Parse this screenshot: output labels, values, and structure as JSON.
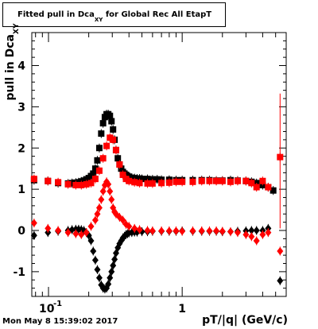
{
  "title": {
    "main": "Fitted pull in Dca",
    "subscript": "XY",
    "rest": " for Global Rec All EtapT"
  },
  "datestamp": "Mon May  8 15:39:02 2017",
  "chart_data": {
    "type": "scatter",
    "xlabel": "pT/|q| (GeV/c)",
    "ylabel_main": "pull in Dca",
    "ylabel_sub": "XY",
    "xscale": "log",
    "xlim": [
      0.075,
      6.0
    ],
    "ylim": [
      -1.6,
      4.8
    ],
    "xticks_major": [
      {
        "v": 0.1,
        "base": "10",
        "exp": "-1"
      },
      {
        "v": 1,
        "label": "1"
      }
    ],
    "yticks": [
      -1,
      0,
      1,
      2,
      3,
      4
    ],
    "series": [
      {
        "color": "#000000",
        "marker": "square",
        "x": [
          0.078,
          0.099,
          0.118,
          0.14,
          0.15,
          0.16,
          0.168,
          0.176,
          0.184,
          0.192,
          0.2,
          0.208,
          0.216,
          0.224,
          0.232,
          0.24,
          0.248,
          0.256,
          0.264,
          0.272,
          0.28,
          0.288,
          0.296,
          0.304,
          0.312,
          0.32,
          0.33,
          0.34,
          0.35,
          0.36,
          0.37,
          0.38,
          0.39,
          0.4,
          0.42,
          0.44,
          0.46,
          0.48,
          0.5,
          0.55,
          0.6,
          0.65,
          0.7,
          0.8,
          0.9,
          1.0,
          1.2,
          1.4,
          1.6,
          1.8,
          2.0,
          2.3,
          2.6,
          3.0,
          3.3,
          3.6,
          4.0,
          4.4,
          4.8
        ],
        "y": [
          1.22,
          1.2,
          1.15,
          1.14,
          1.15,
          1.16,
          1.17,
          1.19,
          1.21,
          1.24,
          1.27,
          1.32,
          1.38,
          1.5,
          1.7,
          2.0,
          2.35,
          2.6,
          2.75,
          2.82,
          2.82,
          2.78,
          2.65,
          2.45,
          2.2,
          1.95,
          1.75,
          1.6,
          1.5,
          1.42,
          1.38,
          1.35,
          1.32,
          1.3,
          1.28,
          1.27,
          1.26,
          1.26,
          1.25,
          1.25,
          1.24,
          1.24,
          1.23,
          1.23,
          1.22,
          1.22,
          1.22,
          1.22,
          1.22,
          1.21,
          1.21,
          1.22,
          1.21,
          1.2,
          1.18,
          1.15,
          1.1,
          1.05,
          0.97
        ],
        "yerr": 0.03
      },
      {
        "color": "#ff0000",
        "marker": "square",
        "x": [
          0.078,
          0.099,
          0.118,
          0.14,
          0.16,
          0.176,
          0.192,
          0.208,
          0.224,
          0.24,
          0.256,
          0.272,
          0.288,
          0.304,
          0.32,
          0.34,
          0.36,
          0.38,
          0.4,
          0.44,
          0.48,
          0.55,
          0.6,
          0.7,
          0.8,
          0.9,
          1.0,
          1.2,
          1.4,
          1.6,
          1.8,
          2.0,
          2.3,
          2.6,
          3.0,
          3.3,
          3.6,
          4.0,
          4.4,
          5.4
        ],
        "y": [
          1.25,
          1.2,
          1.17,
          1.12,
          1.1,
          1.1,
          1.12,
          1.15,
          1.25,
          1.45,
          1.75,
          2.05,
          2.25,
          2.2,
          1.95,
          1.6,
          1.35,
          1.25,
          1.2,
          1.17,
          1.15,
          1.14,
          1.14,
          1.15,
          1.16,
          1.18,
          1.18,
          1.18,
          1.2,
          1.2,
          1.2,
          1.2,
          1.18,
          1.2,
          1.2,
          1.15,
          1.05,
          1.2,
          1.05,
          1.78
        ],
        "yerr": 0.03,
        "big_err_index": 39,
        "big_err": [
          0.05,
          3.32
        ]
      },
      {
        "color": "#000000",
        "marker": "diamond",
        "x": [
          0.078,
          0.099,
          0.118,
          0.14,
          0.15,
          0.16,
          0.168,
          0.176,
          0.184,
          0.192,
          0.2,
          0.208,
          0.216,
          0.224,
          0.232,
          0.24,
          0.248,
          0.256,
          0.264,
          0.272,
          0.28,
          0.288,
          0.296,
          0.304,
          0.312,
          0.32,
          0.33,
          0.34,
          0.35,
          0.36,
          0.37,
          0.38,
          0.39,
          0.4,
          0.42,
          0.44,
          0.46,
          0.5,
          0.55,
          0.6,
          0.7,
          0.8,
          0.9,
          1.0,
          1.2,
          1.4,
          1.6,
          1.8,
          2.0,
          2.3,
          2.6,
          3.0,
          3.3,
          3.6,
          4.0,
          4.4,
          5.4
        ],
        "y": [
          -0.12,
          -0.05,
          -0.02,
          0.0,
          0.02,
          0.03,
          0.03,
          0.02,
          0.0,
          -0.05,
          -0.12,
          -0.25,
          -0.5,
          -0.72,
          -0.95,
          -1.15,
          -1.32,
          -1.4,
          -1.42,
          -1.4,
          -1.3,
          -1.15,
          -1.0,
          -0.85,
          -0.7,
          -0.55,
          -0.42,
          -0.32,
          -0.25,
          -0.18,
          -0.14,
          -0.1,
          -0.08,
          -0.06,
          -0.05,
          -0.04,
          -0.04,
          -0.03,
          -0.03,
          -0.02,
          -0.02,
          -0.02,
          -0.02,
          -0.01,
          -0.02,
          -0.02,
          -0.02,
          -0.02,
          -0.03,
          -0.03,
          -0.02,
          -0.01,
          0.0,
          0.0,
          0.0,
          0.05,
          -1.22
        ],
        "yerr": 0.03
      },
      {
        "color": "#ff0000",
        "marker": "diamond",
        "x": [
          0.078,
          0.099,
          0.118,
          0.14,
          0.16,
          0.176,
          0.192,
          0.208,
          0.224,
          0.232,
          0.24,
          0.248,
          0.256,
          0.264,
          0.272,
          0.28,
          0.288,
          0.296,
          0.304,
          0.312,
          0.32,
          0.34,
          0.36,
          0.38,
          0.4,
          0.44,
          0.48,
          0.55,
          0.6,
          0.7,
          0.8,
          0.9,
          1.0,
          1.2,
          1.4,
          1.6,
          1.8,
          2.0,
          2.3,
          2.6,
          3.0,
          3.3,
          3.6,
          4.0,
          4.4,
          5.4
        ],
        "y": [
          0.18,
          0.05,
          0.0,
          -0.05,
          -0.08,
          -0.1,
          -0.05,
          0.1,
          0.25,
          0.4,
          0.55,
          0.75,
          0.95,
          1.1,
          1.18,
          1.12,
          0.95,
          0.75,
          0.55,
          0.45,
          0.4,
          0.32,
          0.25,
          0.15,
          0.1,
          0.05,
          0.02,
          0.0,
          -0.01,
          -0.01,
          -0.01,
          -0.01,
          -0.02,
          -0.01,
          -0.01,
          -0.01,
          -0.01,
          -0.02,
          -0.03,
          -0.05,
          -0.1,
          -0.15,
          -0.25,
          -0.1,
          -0.05,
          -0.5
        ],
        "yerr": 0.03
      }
    ]
  }
}
